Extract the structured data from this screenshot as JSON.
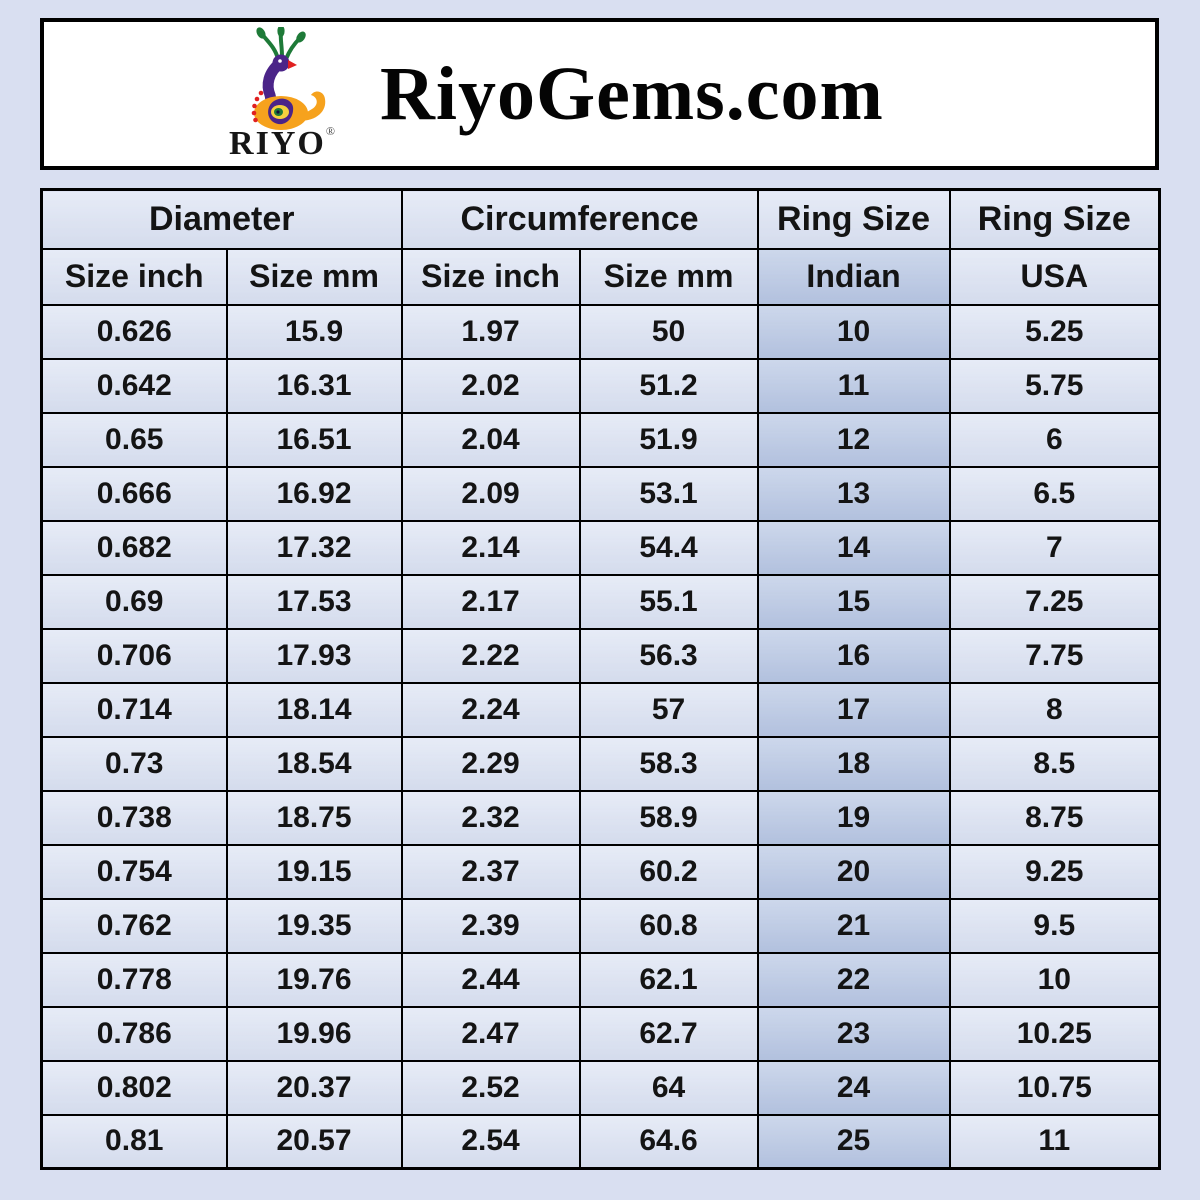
{
  "colors": {
    "page_bg": "#d9dff1",
    "header_box_bg": "#ffffff",
    "border_black": "#000000",
    "cell_bg": "#dce3f3",
    "highlight_cell_bg": "#b7c6e3",
    "text": "#141414",
    "logo_orange": "#f6a21d",
    "logo_purple": "#4b2488",
    "logo_green": "#1e7a38",
    "logo_red": "#e02020",
    "logo_yellow": "#f4d03f"
  },
  "header": {
    "title": "RiyoGems.com",
    "logo_text": "RIYO",
    "logo_icon": "peacock-icon",
    "reg_mark": "®"
  },
  "chart_data": {
    "type": "table",
    "title": "Ring size conversion chart (RiyoGems.com)",
    "group_headers": [
      {
        "label": "Diameter",
        "colspan": 2
      },
      {
        "label": "Circumference",
        "colspan": 2
      },
      {
        "label": "Ring Size",
        "colspan": 1
      },
      {
        "label": "Ring Size",
        "colspan": 1
      }
    ],
    "sub_headers": [
      "Size inch",
      "Size mm",
      "Size inch",
      "Size mm",
      "Indian",
      "USA"
    ],
    "highlight_column": 4,
    "rows": [
      [
        "0.626",
        "15.9",
        "1.97",
        "50",
        "10",
        "5.25"
      ],
      [
        "0.642",
        "16.31",
        "2.02",
        "51.2",
        "11",
        "5.75"
      ],
      [
        "0.65",
        "16.51",
        "2.04",
        "51.9",
        "12",
        "6"
      ],
      [
        "0.666",
        "16.92",
        "2.09",
        "53.1",
        "13",
        "6.5"
      ],
      [
        "0.682",
        "17.32",
        "2.14",
        "54.4",
        "14",
        "7"
      ],
      [
        "0.69",
        "17.53",
        "2.17",
        "55.1",
        "15",
        "7.25"
      ],
      [
        "0.706",
        "17.93",
        "2.22",
        "56.3",
        "16",
        "7.75"
      ],
      [
        "0.714",
        "18.14",
        "2.24",
        "57",
        "17",
        "8"
      ],
      [
        "0.73",
        "18.54",
        "2.29",
        "58.3",
        "18",
        "8.5"
      ],
      [
        "0.738",
        "18.75",
        "2.32",
        "58.9",
        "19",
        "8.75"
      ],
      [
        "0.754",
        "19.15",
        "2.37",
        "60.2",
        "20",
        "9.25"
      ],
      [
        "0.762",
        "19.35",
        "2.39",
        "60.8",
        "21",
        "9.5"
      ],
      [
        "0.778",
        "19.76",
        "2.44",
        "62.1",
        "22",
        "10"
      ],
      [
        "0.786",
        "19.96",
        "2.47",
        "62.7",
        "23",
        "10.25"
      ],
      [
        "0.802",
        "20.37",
        "2.52",
        "64",
        "24",
        "10.75"
      ],
      [
        "0.81",
        "20.57",
        "2.54",
        "64.6",
        "25",
        "11"
      ]
    ]
  }
}
